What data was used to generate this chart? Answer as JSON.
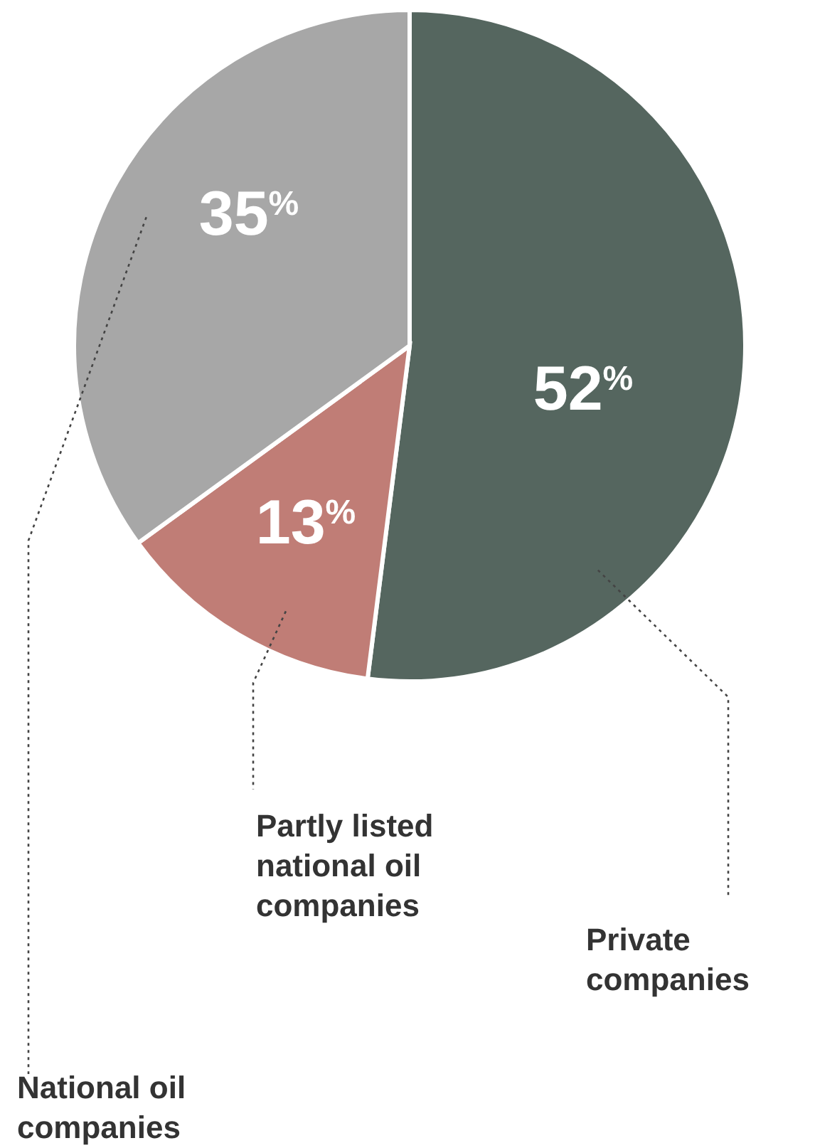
{
  "chart_data": {
    "type": "pie",
    "categories": [
      "Private companies",
      "Partly listed national oil companies",
      "National oil companies"
    ],
    "values": [
      52,
      13,
      35
    ],
    "colors": [
      "#55665f",
      "#c07d76",
      "#a7a7a7"
    ],
    "value_labels": [
      "52%",
      "13%",
      "35%"
    ]
  }
}
